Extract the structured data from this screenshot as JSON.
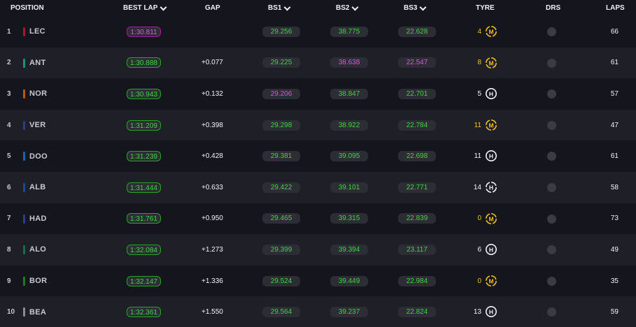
{
  "header": {
    "position": "POSITION",
    "best_lap": "BEST LAP",
    "gap": "GAP",
    "bs1": "BS1",
    "bs2": "BS2",
    "bs3": "BS3",
    "tyre": "TYRE",
    "drs": "DRS",
    "laps": "LAPS"
  },
  "colors": {
    "green": "#3ed63e",
    "purple": "#e052e0",
    "medium_tyre": "#f4c21a",
    "hard_tyre": "#f4f4f6"
  },
  "rows": [
    {
      "pos": "1",
      "driver": "LEC",
      "team_color": "#9c1c2a",
      "best_lap": "1:30.811",
      "best_lap_color": "purple",
      "gap": "",
      "bs1": "29.256",
      "bs1_color": "green",
      "bs2": "38.775",
      "bs2_color": "green",
      "bs3": "22.628",
      "bs3_color": "green",
      "tyre_age": "4",
      "tyre": "M",
      "tyre_icon": "medium-used-tyre-icon",
      "laps": "66"
    },
    {
      "pos": "2",
      "driver": "ANT",
      "team_color": "#1f8f80",
      "best_lap": "1:30.888",
      "best_lap_color": "green",
      "gap": "+0.077",
      "bs1": "29.225",
      "bs1_color": "green",
      "bs2": "38.638",
      "bs2_color": "purple",
      "bs3": "22.547",
      "bs3_color": "purple",
      "tyre_age": "8",
      "tyre": "M",
      "tyre_icon": "medium-used-tyre-icon",
      "laps": "61"
    },
    {
      "pos": "3",
      "driver": "NOR",
      "team_color": "#b35a12",
      "best_lap": "1:30.943",
      "best_lap_color": "green",
      "gap": "+0.132",
      "bs1": "29.206",
      "bs1_color": "purple",
      "bs2": "38.847",
      "bs2_color": "green",
      "bs3": "22.701",
      "bs3_color": "green",
      "tyre_age": "5",
      "tyre": "H",
      "tyre_icon": "hard-new-tyre-icon",
      "laps": "57"
    },
    {
      "pos": "4",
      "driver": "VER",
      "team_color": "#2a3e7a",
      "best_lap": "1:31.209",
      "best_lap_color": "green",
      "gap": "+0.398",
      "bs1": "29.298",
      "bs1_color": "green",
      "bs2": "38.922",
      "bs2_color": "green",
      "bs3": "22.784",
      "bs3_color": "green",
      "tyre_age": "11",
      "tyre": "M",
      "tyre_icon": "medium-used-tyre-icon",
      "laps": "47"
    },
    {
      "pos": "5",
      "driver": "DOO",
      "team_color": "#1d62a6",
      "best_lap": "1:31.239",
      "best_lap_color": "green",
      "gap": "+0.428",
      "bs1": "29.381",
      "bs1_color": "green",
      "bs2": "39.095",
      "bs2_color": "green",
      "bs3": "22.698",
      "bs3_color": "green",
      "tyre_age": "11",
      "tyre": "H",
      "tyre_icon": "hard-new-tyre-icon",
      "laps": "61"
    },
    {
      "pos": "6",
      "driver": "ALB",
      "team_color": "#1e4a8c",
      "best_lap": "1:31.444",
      "best_lap_color": "green",
      "gap": "+0.633",
      "bs1": "29.422",
      "bs1_color": "green",
      "bs2": "39.101",
      "bs2_color": "green",
      "bs3": "22.771",
      "bs3_color": "green",
      "tyre_age": "14",
      "tyre": "H",
      "tyre_icon": "hard-used-tyre-icon",
      "laps": "58"
    },
    {
      "pos": "7",
      "driver": "HAD",
      "team_color": "#2b3f8c",
      "best_lap": "1:31.761",
      "best_lap_color": "green",
      "gap": "+0.950",
      "bs1": "29.465",
      "bs1_color": "green",
      "bs2": "39.315",
      "bs2_color": "green",
      "bs3": "22.839",
      "bs3_color": "green",
      "tyre_age": "0",
      "tyre": "M",
      "tyre_icon": "medium-used-tyre-icon",
      "laps": "73"
    },
    {
      "pos": "8",
      "driver": "ALO",
      "team_color": "#1a6b4a",
      "best_lap": "1:32.084",
      "best_lap_color": "green",
      "gap": "+1.273",
      "bs1": "29.399",
      "bs1_color": "green",
      "bs2": "39.394",
      "bs2_color": "green",
      "bs3": "23.117",
      "bs3_color": "green",
      "tyre_age": "6",
      "tyre": "H",
      "tyre_icon": "hard-new-tyre-icon",
      "laps": "49"
    },
    {
      "pos": "9",
      "driver": "BOR",
      "team_color": "#1c7a2a",
      "best_lap": "1:32.147",
      "best_lap_color": "green",
      "gap": "+1.336",
      "bs1": "29.524",
      "bs1_color": "green",
      "bs2": "39.449",
      "bs2_color": "green",
      "bs3": "22.984",
      "bs3_color": "green",
      "tyre_age": "0",
      "tyre": "M",
      "tyre_icon": "medium-used-tyre-icon",
      "laps": "35"
    },
    {
      "pos": "10",
      "driver": "BEA",
      "team_color": "#8a8a90",
      "best_lap": "1:32.361",
      "best_lap_color": "green",
      "gap": "+1.550",
      "bs1": "29.564",
      "bs1_color": "green",
      "bs2": "39.237",
      "bs2_color": "green",
      "bs3": "22.824",
      "bs3_color": "green",
      "tyre_age": "13",
      "tyre": "H",
      "tyre_icon": "hard-new-tyre-icon",
      "laps": "59"
    }
  ]
}
